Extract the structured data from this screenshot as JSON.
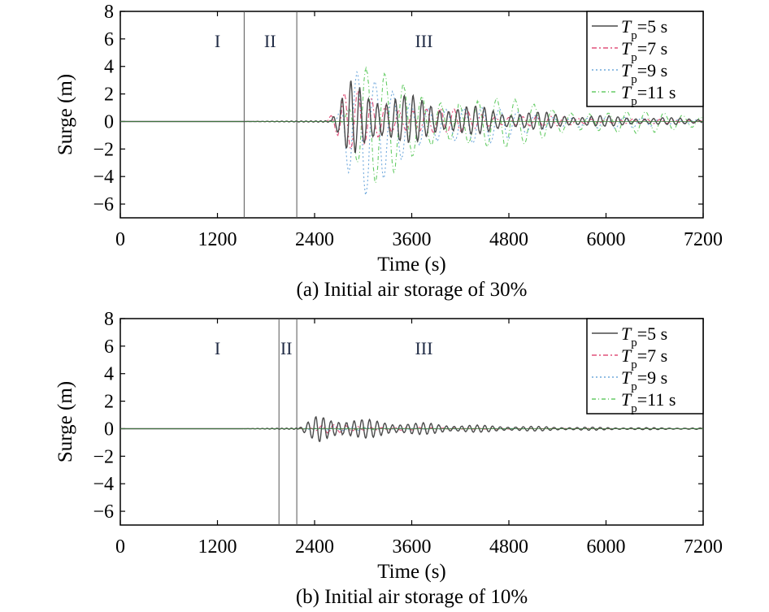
{
  "chart_data": [
    {
      "type": "line",
      "caption": "(a) Initial air storage of 30%",
      "xlabel": "Time (s)",
      "ylabel": "Surge (m)",
      "xlim": [
        0,
        7200
      ],
      "ylim": [
        -7,
        8
      ],
      "xticks": [
        "0",
        "1200",
        "2400",
        "3600",
        "4800",
        "6000",
        "7200"
      ],
      "yticks": [
        "8",
        "6",
        "4",
        "2",
        "0",
        "−2",
        "−4",
        "−6"
      ],
      "regions": [
        {
          "label": "I",
          "x": 1200
        },
        {
          "label": "II",
          "x": 1850
        },
        {
          "label": "III",
          "x": 3750
        }
      ],
      "dividers": [
        1530,
        2180
      ],
      "legend_position": "top-right",
      "series": [
        {
          "legend_italic": "T",
          "legend_sub": "p",
          "legend_rest": "=5 s",
          "color": "#4a4a4a",
          "dash": "",
          "onset": 2600,
          "peak": 3.0,
          "neg_peak": -2.4,
          "period": 110,
          "decay": 1500
        },
        {
          "legend_italic": "T",
          "legend_sub": "p",
          "legend_rest": "=7 s",
          "color": "#e0507a",
          "dash": "6,3,2,3",
          "onset": 2550,
          "peak": 2.4,
          "neg_peak": -2.0,
          "period": 170,
          "decay": 1300
        },
        {
          "legend_italic": "T",
          "legend_sub": "p",
          "legend_rest": "=9 s",
          "color": "#6fa8dc",
          "dash": "2,3",
          "onset": 2650,
          "peak": 3.6,
          "neg_peak": -5.8,
          "period": 220,
          "decay": 1200
        },
        {
          "legend_italic": "T",
          "legend_sub": "p",
          "legend_rest": "=11 s",
          "color": "#66cc66",
          "dash": "5,3,1,3",
          "onset": 2750,
          "peak": 4.0,
          "neg_peak": -4.6,
          "period": 230,
          "decay": 1900
        }
      ]
    },
    {
      "type": "line",
      "caption": "(b) Initial air storage of 10%",
      "xlabel": "Time (s)",
      "ylabel": "Surge (m)",
      "xlim": [
        0,
        7200
      ],
      "ylim": [
        -7,
        8
      ],
      "xticks": [
        "0",
        "1200",
        "2400",
        "3600",
        "4800",
        "6000",
        "7200"
      ],
      "yticks": [
        "8",
        "6",
        "4",
        "2",
        "0",
        "−2",
        "−4",
        "−6"
      ],
      "regions": [
        {
          "label": "I",
          "x": 1200
        },
        {
          "label": "II",
          "x": 2050
        },
        {
          "label": "III",
          "x": 3750
        }
      ],
      "dividers": [
        1960,
        2180
      ],
      "legend_position": "top-right",
      "series": [
        {
          "legend_italic": "T",
          "legend_sub": "p",
          "legend_rest": "=5 s",
          "color": "#4a4a4a",
          "dash": "",
          "onset": 2200,
          "peak": 1.0,
          "neg_peak": -1.0,
          "period": 95,
          "decay": 1400
        },
        {
          "legend_italic": "T",
          "legend_sub": "p",
          "legend_rest": "=7 s",
          "color": "#e0507a",
          "dash": "6,3,2,3",
          "onset": 2300,
          "peak": 0.3,
          "neg_peak": -0.3,
          "period": 150,
          "decay": 900
        },
        {
          "legend_italic": "T",
          "legend_sub": "p",
          "legend_rest": "=9 s",
          "color": "#6fa8dc",
          "dash": "2,3",
          "onset": 2400,
          "peak": 0.15,
          "neg_peak": -0.15,
          "period": 200,
          "decay": 800
        },
        {
          "legend_italic": "T",
          "legend_sub": "p",
          "legend_rest": "=11 s",
          "color": "#66cc66",
          "dash": "5,3,1,3",
          "onset": 2500,
          "peak": 0.1,
          "neg_peak": -0.1,
          "period": 230,
          "decay": 800
        }
      ]
    }
  ]
}
